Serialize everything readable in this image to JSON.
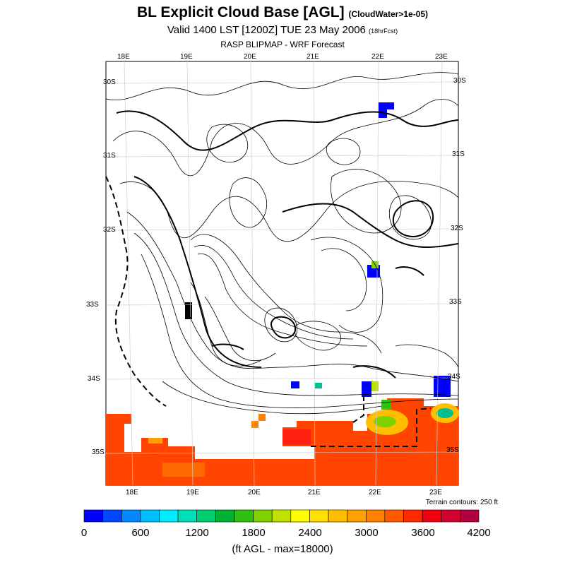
{
  "header": {
    "title": "BL Explicit Cloud Base [AGL]",
    "title_note": "(CloudWater>1e-05)",
    "valid_line": "Valid 1400 LST [1200Z] TUE 23 May 2006",
    "valid_note": "(18hrFcst)",
    "model_line": "RASP BLIPMAP - WRF Forecast"
  },
  "map": {
    "lon_labels_top": [
      "18E",
      "19E",
      "20E",
      "21E",
      "22E",
      "23E"
    ],
    "lon_labels_bottom": [
      "18E",
      "19E",
      "20E",
      "21E",
      "22E",
      "23E"
    ],
    "lat_labels_left": [
      "30S",
      "31S",
      "32S",
      "33S",
      "34S",
      "35S"
    ],
    "lat_labels_right": [
      "30S",
      "31S",
      "32S",
      "33S",
      "34S",
      "35S"
    ],
    "terrain_note": "Terrain contours: 250 ft"
  },
  "colorbar": {
    "colors": [
      "#0000ff",
      "#0047ff",
      "#0088ff",
      "#00bfff",
      "#00ecff",
      "#00e0b8",
      "#00cc70",
      "#00b030",
      "#30c010",
      "#80d000",
      "#c0e000",
      "#ffff00",
      "#ffe000",
      "#ffbf00",
      "#ff9f00",
      "#ff7f00",
      "#ff5a00",
      "#ff2a00",
      "#f00010",
      "#d00030",
      "#b00040"
    ],
    "tick_labels": [
      "0",
      "600",
      "1200",
      "1800",
      "2400",
      "3000",
      "3600",
      "4200"
    ],
    "units_label": "(ft AGL - max=18000)"
  }
}
